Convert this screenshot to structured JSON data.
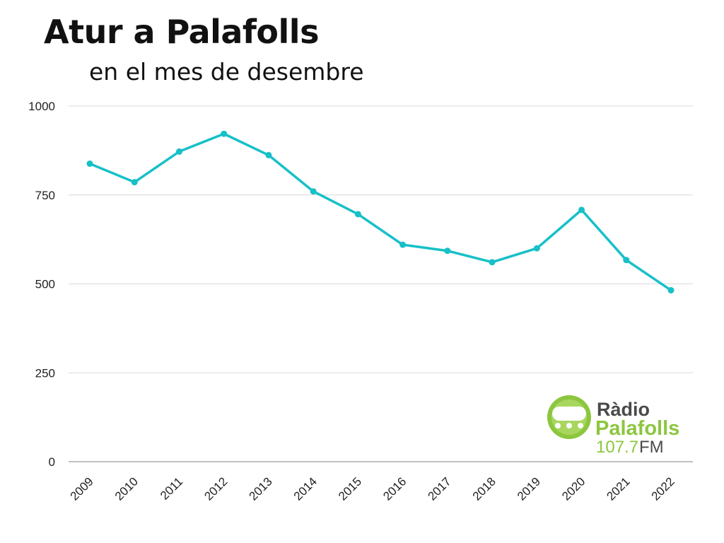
{
  "chart_data": {
    "type": "line",
    "title": "Atur a Palafolls",
    "subtitle": "en el mes de desembre",
    "xlabel": "",
    "ylabel": "",
    "categories": [
      "2009",
      "2010",
      "2011",
      "2012",
      "2013",
      "2014",
      "2015",
      "2016",
      "2017",
      "2018",
      "2019",
      "2020",
      "2021",
      "2022"
    ],
    "series": [
      {
        "values": [
          838,
          786,
          872,
          922,
          862,
          760,
          696,
          610,
          593,
          561,
          600,
          708,
          567,
          482
        ]
      }
    ],
    "ylim": [
      0,
      1000
    ],
    "yticks": [
      "0",
      "250",
      "500",
      "750",
      "1000"
    ],
    "grid": true,
    "legend": "none",
    "line_color": "#17c0c8",
    "grid_color": "#d9d9d9"
  },
  "logo": {
    "line1": "Ràdio",
    "line2": "Palafolls",
    "frequency": "107.7",
    "band": "FM",
    "brand_green": "#8cc63f",
    "brand_gray": "#4a4a4a"
  }
}
